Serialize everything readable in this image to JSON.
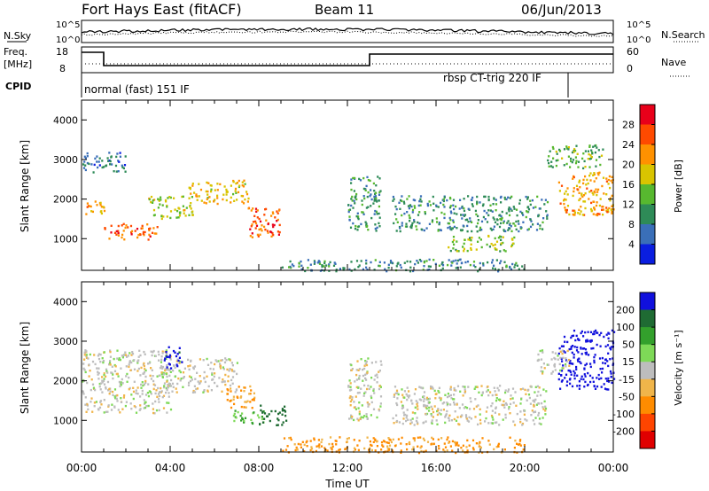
{
  "header": {
    "title": "Fort Hays East (fitACF)",
    "beam": "Beam 11",
    "date": "06/Jun/2013"
  },
  "summary_panels": {
    "nsky": {
      "left_label": "N.Sky",
      "right_label": "N.Search",
      "ticks_left": [
        "10^5",
        "10^0"
      ],
      "ticks_right": [
        "10^5",
        "10^0"
      ]
    },
    "freq": {
      "left_label_1": "Freq.",
      "left_label_2": "[MHz]",
      "right_label": "Nave",
      "ticks_left": [
        "18",
        "8"
      ],
      "ticks_right": [
        "60",
        "0"
      ]
    },
    "cpid": {
      "label": "CPID",
      "modes": [
        "normal (fast) 151 IF",
        "rbsp CT-trig 220 IF"
      ]
    }
  },
  "x_axis": {
    "title": "Time UT",
    "tick_labels": [
      "00:00",
      "04:00",
      "08:00",
      "12:00",
      "16:00",
      "20:00",
      "00:00"
    ]
  },
  "power_colorbar": {
    "title": "Power [dB]",
    "ticks": [
      "28",
      "24",
      "20",
      "16",
      "12",
      "8",
      "4"
    ],
    "colors": [
      "#e8001a",
      "#ff4a00",
      "#ff9100",
      "#d9c400",
      "#57b82f",
      "#2e8b57",
      "#3a6fb8",
      "#0a1ee0"
    ]
  },
  "velocity_colorbar": {
    "title": "Velocity [m s⁻¹]",
    "ticks": [
      "200",
      "100",
      "50",
      "15",
      "-15",
      "-50",
      "-100",
      "-200"
    ],
    "colors": [
      "#1010dd",
      "#1f6b33",
      "#33a02c",
      "#7ed957",
      "#bdbdbd",
      "#f0b54a",
      "#ff8c00",
      "#ff4500",
      "#e00000"
    ]
  },
  "chart_data": [
    {
      "type": "heatmap",
      "quantity": "Power",
      "xlabel": "Time UT",
      "ylabel": "Slant Range [km]",
      "xlim": [
        0,
        24
      ],
      "ylim": [
        200,
        4500
      ],
      "y_ticks": [
        1000,
        2000,
        3000,
        4000
      ],
      "clim": [
        0,
        30
      ],
      "regions": [
        {
          "t0": 0.0,
          "t1": 1.0,
          "r_lo": 1600,
          "r_hi": 2000,
          "value": 20
        },
        {
          "t0": 1.0,
          "t1": 3.5,
          "r_lo": 1000,
          "r_hi": 1400,
          "value": 23
        },
        {
          "t0": 3.0,
          "t1": 5.0,
          "r_lo": 1500,
          "r_hi": 2100,
          "value": 15
        },
        {
          "t0": 4.8,
          "t1": 7.5,
          "r_lo": 1900,
          "r_hi": 2500,
          "value": 18
        },
        {
          "t0": 7.5,
          "t1": 9.0,
          "r_lo": 1000,
          "r_hi": 1800,
          "value": 24
        },
        {
          "t0": 0.0,
          "t1": 2.0,
          "r_lo": 2700,
          "r_hi": 3200,
          "value": 7
        },
        {
          "t0": 12.0,
          "t1": 13.5,
          "r_lo": 1200,
          "r_hi": 2600,
          "value": 10
        },
        {
          "t0": 14.0,
          "t1": 21.0,
          "r_lo": 1200,
          "r_hi": 2100,
          "value": 9
        },
        {
          "t0": 16.5,
          "t1": 19.5,
          "r_lo": 700,
          "r_hi": 1100,
          "value": 14
        },
        {
          "t0": 21.5,
          "t1": 24.0,
          "r_lo": 1600,
          "r_hi": 2700,
          "value": 20
        },
        {
          "t0": 21.0,
          "t1": 23.5,
          "r_lo": 2800,
          "r_hi": 3400,
          "value": 12
        },
        {
          "t0": 9.0,
          "t1": 20.0,
          "r_lo": 200,
          "r_hi": 500,
          "value": 8
        }
      ]
    },
    {
      "type": "heatmap",
      "quantity": "Velocity",
      "xlabel": "Time UT",
      "ylabel": "Slant Range [km]",
      "xlim": [
        0,
        24
      ],
      "ylim": [
        200,
        4500
      ],
      "y_ticks": [
        1000,
        2000,
        3000,
        4000
      ],
      "clim": [
        -200,
        200
      ],
      "regions": [
        {
          "t0": 0.0,
          "t1": 4.0,
          "r_lo": 1200,
          "r_hi": 2800,
          "value": 0
        },
        {
          "t0": 3.5,
          "t1": 7.0,
          "r_lo": 1700,
          "r_hi": 2600,
          "value": -5
        },
        {
          "t0": 3.7,
          "t1": 4.5,
          "r_lo": 2300,
          "r_hi": 2900,
          "value": 220
        },
        {
          "t0": 6.5,
          "t1": 7.8,
          "r_lo": 1300,
          "r_hi": 1900,
          "value": -60
        },
        {
          "t0": 6.8,
          "t1": 8.2,
          "r_lo": 900,
          "r_hi": 1300,
          "value": 45
        },
        {
          "t0": 8.0,
          "t1": 9.2,
          "r_lo": 900,
          "r_hi": 1400,
          "value": 160
        },
        {
          "t0": 12.0,
          "t1": 13.5,
          "r_lo": 1000,
          "r_hi": 2600,
          "value": 0
        },
        {
          "t0": 14.0,
          "t1": 21.0,
          "r_lo": 900,
          "r_hi": 1900,
          "value": 0
        },
        {
          "t0": 9.0,
          "t1": 20.0,
          "r_lo": 200,
          "r_hi": 600,
          "value": -60
        },
        {
          "t0": 21.5,
          "t1": 24.0,
          "r_lo": 1800,
          "r_hi": 3300,
          "value": 230
        },
        {
          "t0": 20.5,
          "t1": 22.0,
          "r_lo": 2200,
          "r_hi": 2800,
          "value": 0
        }
      ]
    }
  ]
}
